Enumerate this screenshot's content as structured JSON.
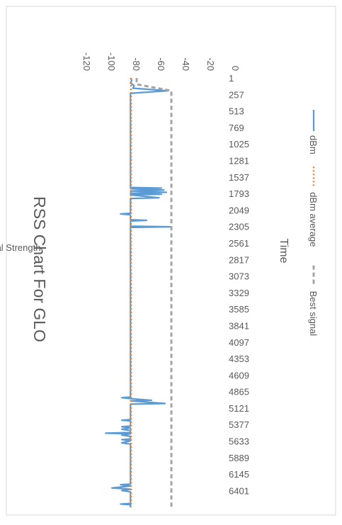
{
  "chart_data": {
    "type": "line",
    "title": "RSS Chart For GLO",
    "xlabel": "Time",
    "ylabel": "Signal Strength",
    "ylim": [
      -140,
      0
    ],
    "yticks": [
      0,
      -20,
      -40,
      -60,
      -80,
      -100,
      -120
    ],
    "xlim": [
      1,
      6660
    ],
    "xticks": [
      1,
      257,
      513,
      769,
      1025,
      1281,
      1537,
      1793,
      2049,
      2305,
      2561,
      2817,
      3073,
      3329,
      3585,
      3841,
      4097,
      4353,
      4609,
      4865,
      5121,
      5377,
      5633,
      5889,
      6145,
      6401
    ],
    "grid": false,
    "legend": "bottom",
    "orientation": "rotated-90",
    "series": [
      {
        "name": "dBm",
        "style": "solid",
        "color": "#5b9bd5",
        "points": [
          [
            1,
            -85
          ],
          [
            40,
            -84
          ],
          [
            80,
            -85
          ],
          [
            120,
            -82
          ],
          [
            160,
            -83
          ],
          [
            200,
            -55
          ],
          [
            240,
            -85
          ],
          [
            600,
            -85
          ],
          [
            1600,
            -85
          ],
          [
            1700,
            -85
          ],
          [
            1710,
            -60
          ],
          [
            1720,
            -85
          ],
          [
            1740,
            -58
          ],
          [
            1755,
            -85
          ],
          [
            1775,
            -56
          ],
          [
            1790,
            -85
          ],
          [
            1805,
            -60
          ],
          [
            1815,
            -85
          ],
          [
            1860,
            -62
          ],
          [
            1870,
            -85
          ],
          [
            2100,
            -85
          ],
          [
            2110,
            -93
          ],
          [
            2125,
            -85
          ],
          [
            2200,
            -85
          ],
          [
            2210,
            -72
          ],
          [
            2220,
            -85
          ],
          [
            2300,
            -85
          ],
          [
            2310,
            -52
          ],
          [
            2320,
            -85
          ],
          [
            3500,
            -85
          ],
          [
            4950,
            -85
          ],
          [
            4960,
            -92
          ],
          [
            4975,
            -85
          ],
          [
            5000,
            -68
          ],
          [
            5010,
            -85
          ],
          [
            5050,
            -57
          ],
          [
            5060,
            -85
          ],
          [
            5300,
            -85
          ],
          [
            5310,
            -92
          ],
          [
            5320,
            -85
          ],
          [
            5400,
            -85
          ],
          [
            5410,
            -92
          ],
          [
            5430,
            -85
          ],
          [
            5450,
            -92
          ],
          [
            5470,
            -85
          ],
          [
            5500,
            -85
          ],
          [
            5510,
            -105
          ],
          [
            5520,
            -85
          ],
          [
            5540,
            -92
          ],
          [
            5560,
            -85
          ],
          [
            5600,
            -85
          ],
          [
            5610,
            -92
          ],
          [
            5630,
            -85
          ],
          [
            5660,
            -92
          ],
          [
            5680,
            -85
          ],
          [
            5900,
            -85
          ],
          [
            6300,
            -85
          ],
          [
            6310,
            -93
          ],
          [
            6330,
            -85
          ],
          [
            6360,
            -100
          ],
          [
            6380,
            -85
          ],
          [
            6400,
            -92
          ],
          [
            6420,
            -85
          ],
          [
            6600,
            -85
          ],
          [
            6610,
            -93
          ],
          [
            6620,
            -85
          ],
          [
            6660,
            -85
          ]
        ]
      },
      {
        "name": "dBm average",
        "style": "dotted",
        "color": "#ed7d31",
        "points": [
          [
            1,
            -84.5
          ],
          [
            6660,
            -84.5
          ]
        ]
      },
      {
        "name": "Best signal",
        "style": "dashed",
        "color": "#a5a5a5",
        "points": [
          [
            1,
            -80
          ],
          [
            100,
            -80
          ],
          [
            200,
            -52
          ],
          [
            6660,
            -52
          ]
        ]
      }
    ]
  }
}
